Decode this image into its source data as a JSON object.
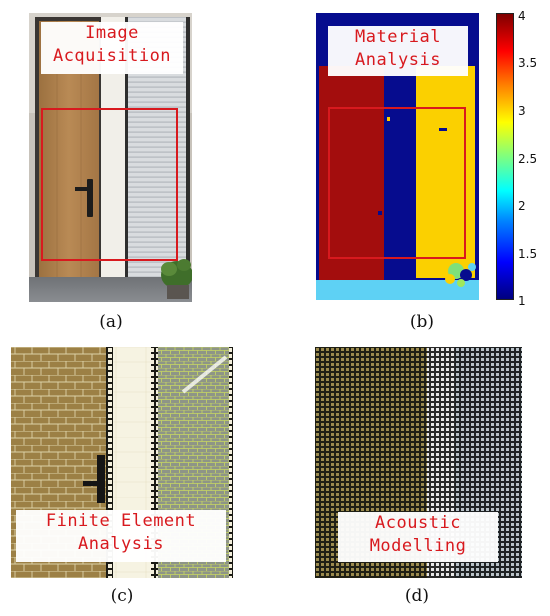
{
  "panels": [
    {
      "label": "(a)",
      "tag_line1": "Image",
      "tag_line2": "Acquisition"
    },
    {
      "label": "(b)",
      "tag_line1": "Material",
      "tag_line2": "Analysis"
    },
    {
      "label": "(c)",
      "tag_line1": "Finite Element",
      "tag_line2": "Analysis"
    },
    {
      "label": "(d)",
      "tag_line1": "Acoustic",
      "tag_line2": "Modelling"
    }
  ],
  "colorbar": {
    "ticks": [
      "4",
      "3.5",
      "3",
      "2.5",
      "2",
      "1.5",
      "1"
    ],
    "range": [
      1,
      4
    ]
  },
  "colors": {
    "annotation_red": "#d8191e",
    "material_dark_red": "#a30d0d",
    "material_navy": "#060c8e",
    "material_yellow": "#fbd000",
    "material_cyan": "#5ed1f4"
  }
}
